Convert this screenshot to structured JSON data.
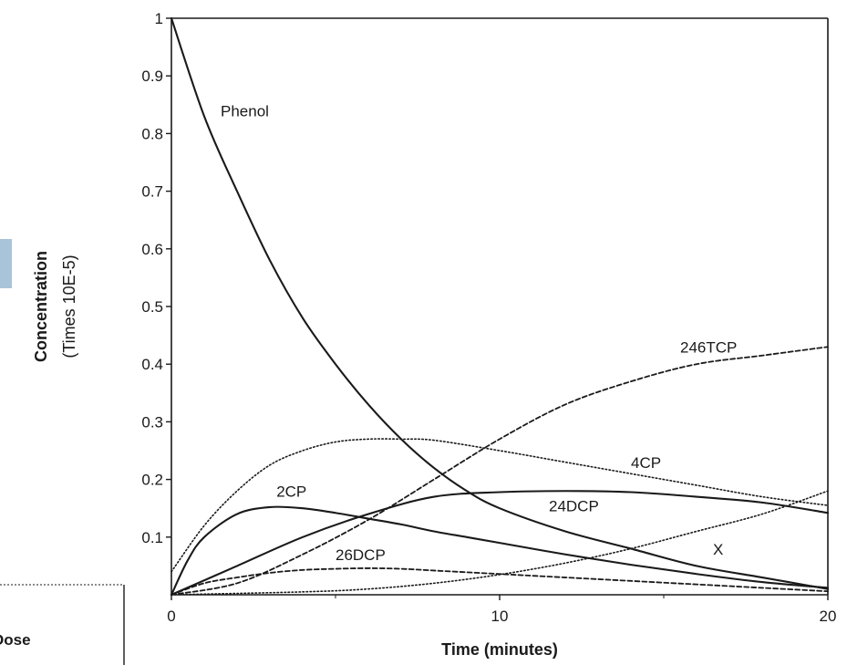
{
  "chart_data": {
    "type": "line",
    "title": "",
    "xlabel": "Time (minutes)",
    "ylabel": "Concentration",
    "ylabel_sub": "(Times 10E-5)",
    "xlim": [
      0,
      20
    ],
    "ylim": [
      0,
      1
    ],
    "x_ticks": [
      0,
      10,
      20
    ],
    "x_tick_labels": [
      "0",
      "10",
      "20"
    ],
    "y_ticks": [
      0.1,
      0.2,
      0.3,
      0.4,
      0.5,
      0.6,
      0.7,
      0.8,
      0.9,
      1
    ],
    "y_tick_labels": [
      "0.1",
      "0.2",
      "0.3",
      "0.4",
      "0.5",
      "0.6",
      "0.7",
      "0.8",
      "0.9",
      "1"
    ],
    "grid": false,
    "series": [
      {
        "name": "Phenol",
        "style": "solid",
        "points": [
          [
            0,
            1.0
          ],
          [
            1,
            0.83
          ],
          [
            2,
            0.7
          ],
          [
            3,
            0.58
          ],
          [
            4,
            0.48
          ],
          [
            5,
            0.4
          ],
          [
            6,
            0.33
          ],
          [
            7,
            0.27
          ],
          [
            8,
            0.22
          ],
          [
            9,
            0.18
          ],
          [
            10,
            0.15
          ],
          [
            12,
            0.11
          ],
          [
            14,
            0.08
          ],
          [
            16,
            0.05
          ],
          [
            18,
            0.03
          ],
          [
            20,
            0.01
          ]
        ],
        "label_at": [
          1.5,
          0.83
        ]
      },
      {
        "name": "2CP",
        "style": "solid",
        "points": [
          [
            0,
            0.0
          ],
          [
            0.5,
            0.06
          ],
          [
            1,
            0.1
          ],
          [
            2,
            0.14
          ],
          [
            3,
            0.152
          ],
          [
            4,
            0.15
          ],
          [
            5,
            0.142
          ],
          [
            6,
            0.132
          ],
          [
            7,
            0.122
          ],
          [
            8,
            0.11
          ],
          [
            9,
            0.1
          ],
          [
            10,
            0.09
          ],
          [
            12,
            0.07
          ],
          [
            14,
            0.052
          ],
          [
            16,
            0.036
          ],
          [
            18,
            0.022
          ],
          [
            20,
            0.012
          ]
        ],
        "label_at": [
          3.2,
          0.17
        ]
      },
      {
        "name": "24DCP",
        "style": "solid",
        "points": [
          [
            0,
            0.0
          ],
          [
            2,
            0.05
          ],
          [
            4,
            0.1
          ],
          [
            6,
            0.14
          ],
          [
            8,
            0.17
          ],
          [
            10,
            0.178
          ],
          [
            12,
            0.18
          ],
          [
            14,
            0.178
          ],
          [
            16,
            0.17
          ],
          [
            18,
            0.16
          ],
          [
            20,
            0.142
          ]
        ],
        "label_at": [
          11.5,
          0.145
        ]
      },
      {
        "name": "4CP",
        "style": "dotted",
        "points": [
          [
            0,
            0.04
          ],
          [
            1,
            0.12
          ],
          [
            2,
            0.18
          ],
          [
            3,
            0.225
          ],
          [
            4,
            0.25
          ],
          [
            5,
            0.265
          ],
          [
            6,
            0.27
          ],
          [
            7,
            0.27
          ],
          [
            8,
            0.268
          ],
          [
            10,
            0.25
          ],
          [
            12,
            0.23
          ],
          [
            14,
            0.21
          ],
          [
            16,
            0.19
          ],
          [
            18,
            0.17
          ],
          [
            20,
            0.155
          ]
        ],
        "label_at": [
          14,
          0.22
        ]
      },
      {
        "name": "246TCP",
        "style": "dashed",
        "points": [
          [
            0,
            0.0
          ],
          [
            2,
            0.02
          ],
          [
            4,
            0.07
          ],
          [
            6,
            0.13
          ],
          [
            8,
            0.2
          ],
          [
            10,
            0.27
          ],
          [
            12,
            0.33
          ],
          [
            14,
            0.37
          ],
          [
            16,
            0.4
          ],
          [
            18,
            0.415
          ],
          [
            20,
            0.43
          ]
        ],
        "label_at": [
          15.5,
          0.42
        ]
      },
      {
        "name": "26DCP",
        "style": "dashed",
        "points": [
          [
            0,
            0.0
          ],
          [
            1,
            0.02
          ],
          [
            2,
            0.03
          ],
          [
            3,
            0.038
          ],
          [
            4,
            0.043
          ],
          [
            5,
            0.045
          ],
          [
            6,
            0.046
          ],
          [
            7,
            0.045
          ],
          [
            8,
            0.042
          ],
          [
            10,
            0.036
          ],
          [
            12,
            0.03
          ],
          [
            14,
            0.024
          ],
          [
            16,
            0.018
          ],
          [
            18,
            0.012
          ],
          [
            20,
            0.006
          ]
        ],
        "label_at": [
          5,
          0.06
        ]
      },
      {
        "name": "X",
        "style": "dotted",
        "points": [
          [
            0,
            0.0
          ],
          [
            4,
            0.005
          ],
          [
            6,
            0.01
          ],
          [
            8,
            0.02
          ],
          [
            10,
            0.035
          ],
          [
            12,
            0.055
          ],
          [
            14,
            0.08
          ],
          [
            16,
            0.11
          ],
          [
            18,
            0.14
          ],
          [
            20,
            0.18
          ]
        ],
        "label_at": [
          16.5,
          0.07
        ]
      }
    ]
  },
  "fragment": {
    "text": "Dose"
  }
}
